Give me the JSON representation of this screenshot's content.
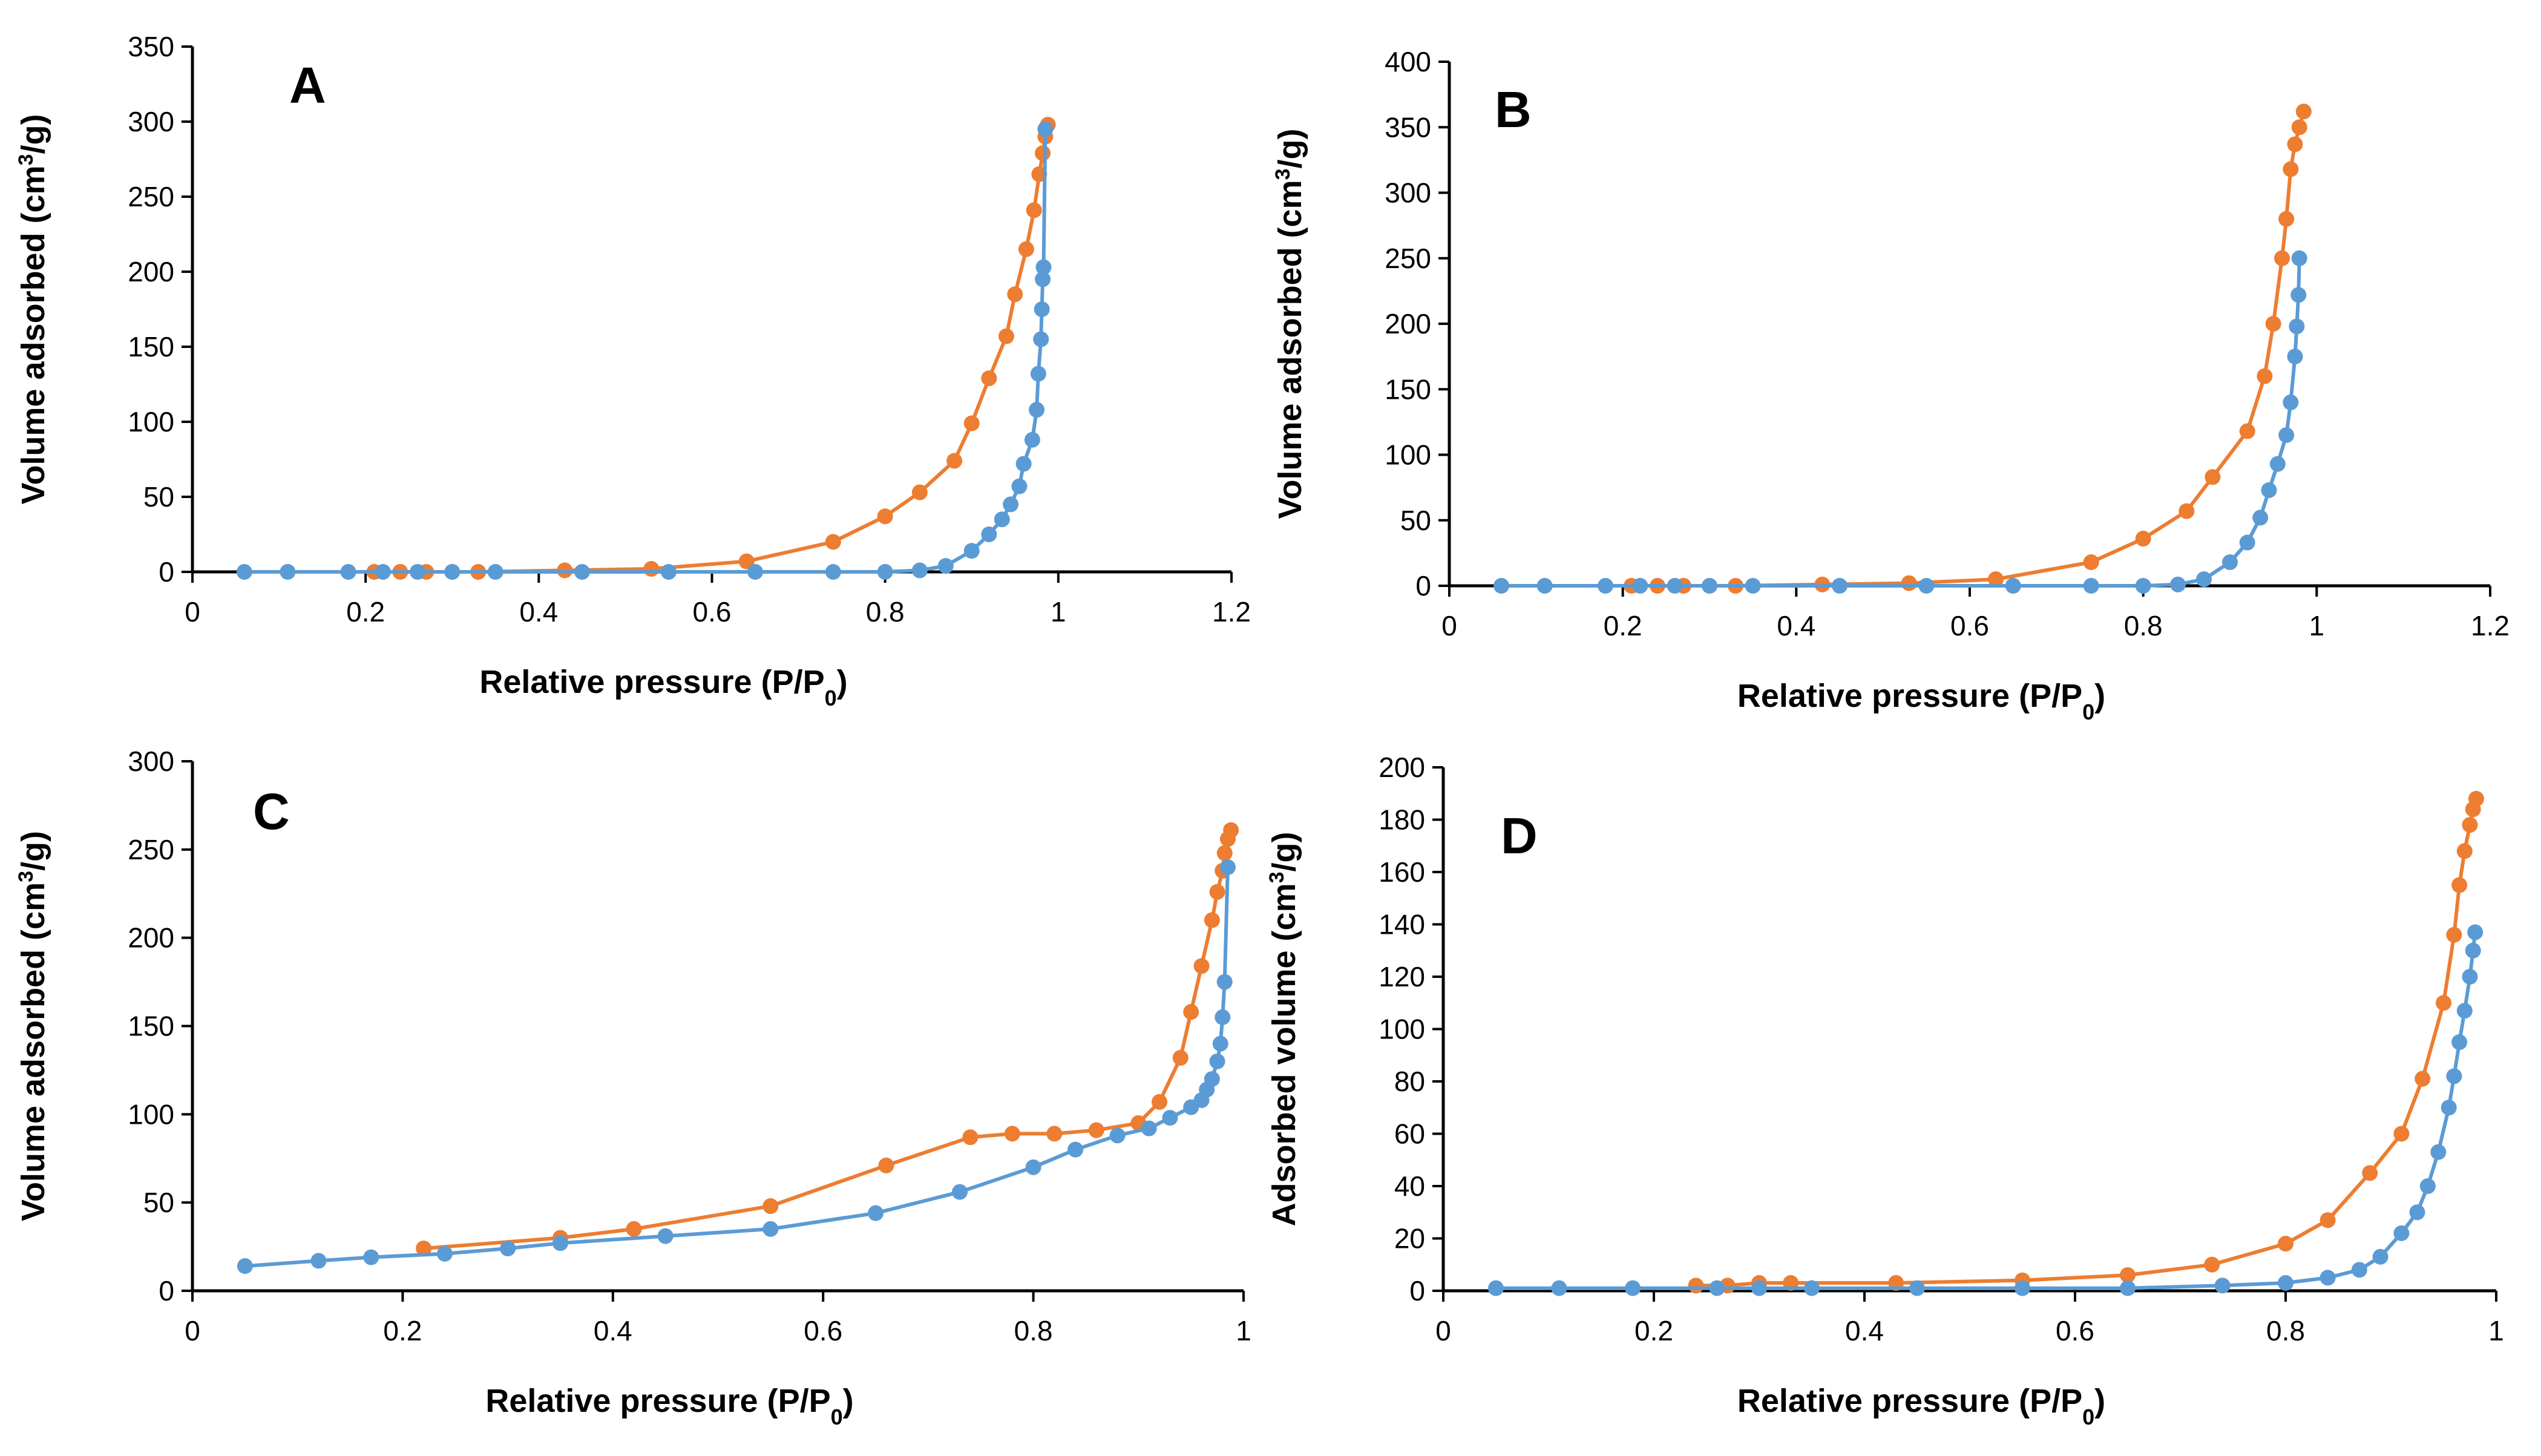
{
  "colors": {
    "desorption": "#ED7D31",
    "adsorption": "#5B9BD5",
    "axis": "#000000"
  },
  "chart_data": [
    {
      "panel": "A",
      "type": "line",
      "xlabel": "Relative pressure (P/P0)",
      "ylabel": "Volume adsorbed (cm3/g)",
      "xlim": [
        0,
        1.2
      ],
      "ylim": [
        0,
        350
      ],
      "xticks": [
        0,
        0.2,
        0.4,
        0.6,
        0.8,
        1,
        1.2
      ],
      "xtick_labels": [
        "0",
        "0.2",
        "0.4",
        "0.6",
        "0.8",
        "1",
        "1.2"
      ],
      "yticks": [
        0,
        50,
        100,
        150,
        200,
        250,
        300,
        350
      ],
      "ytick_labels": [
        "0",
        "50",
        "100",
        "150",
        "200",
        "250",
        "300",
        "350"
      ],
      "series": [
        {
          "color": "#ED7D31",
          "points": [
            [
              0.21,
              0
            ],
            [
              0.24,
              0
            ],
            [
              0.27,
              0
            ],
            [
              0.3,
              0
            ],
            [
              0.33,
              0
            ],
            [
              0.43,
              1
            ],
            [
              0.53,
              2
            ],
            [
              0.64,
              7
            ],
            [
              0.74,
              20
            ],
            [
              0.8,
              37
            ],
            [
              0.84,
              53
            ],
            [
              0.88,
              74
            ],
            [
              0.9,
              99
            ],
            [
              0.92,
              129
            ],
            [
              0.94,
              157
            ],
            [
              0.95,
              185
            ],
            [
              0.963,
              215
            ],
            [
              0.972,
              241
            ],
            [
              0.978,
              265
            ],
            [
              0.982,
              279
            ],
            [
              0.985,
              290
            ],
            [
              0.988,
              298
            ]
          ]
        },
        {
          "color": "#5B9BD5",
          "points": [
            [
              0.06,
              0
            ],
            [
              0.11,
              0
            ],
            [
              0.18,
              0
            ],
            [
              0.22,
              0
            ],
            [
              0.26,
              0
            ],
            [
              0.3,
              0
            ],
            [
              0.35,
              0
            ],
            [
              0.45,
              0
            ],
            [
              0.55,
              0
            ],
            [
              0.65,
              0
            ],
            [
              0.74,
              0
            ],
            [
              0.8,
              0
            ],
            [
              0.84,
              1
            ],
            [
              0.87,
              4
            ],
            [
              0.9,
              14
            ],
            [
              0.92,
              25
            ],
            [
              0.935,
              35
            ],
            [
              0.945,
              45
            ],
            [
              0.955,
              57
            ],
            [
              0.96,
              72
            ],
            [
              0.97,
              88
            ],
            [
              0.975,
              108
            ],
            [
              0.977,
              132
            ],
            [
              0.98,
              155
            ],
            [
              0.981,
              175
            ],
            [
              0.982,
              195
            ],
            [
              0.983,
              203
            ],
            [
              0.985,
              295
            ]
          ]
        }
      ]
    },
    {
      "panel": "B",
      "type": "line",
      "xlabel": "Relative pressure (P/P0)",
      "ylabel": "Volume adsorbed (cm3/g)",
      "xlim": [
        0,
        1.2
      ],
      "ylim": [
        0,
        400
      ],
      "xticks": [
        0,
        0.2,
        0.4,
        0.6,
        0.8,
        1,
        1.2
      ],
      "xtick_labels": [
        "0",
        "0.2",
        "0.4",
        "0.6",
        "0.8",
        "1",
        "1.2"
      ],
      "yticks": [
        0,
        50,
        100,
        150,
        200,
        250,
        300,
        350,
        400
      ],
      "ytick_labels": [
        "0",
        "50",
        "100",
        "150",
        "200",
        "250",
        "300",
        "350",
        "400"
      ],
      "series": [
        {
          "color": "#ED7D31",
          "points": [
            [
              0.21,
              0
            ],
            [
              0.24,
              0
            ],
            [
              0.27,
              0
            ],
            [
              0.3,
              0
            ],
            [
              0.33,
              0
            ],
            [
              0.43,
              1
            ],
            [
              0.53,
              2
            ],
            [
              0.63,
              5
            ],
            [
              0.74,
              18
            ],
            [
              0.8,
              36
            ],
            [
              0.85,
              57
            ],
            [
              0.88,
              83
            ],
            [
              0.92,
              118
            ],
            [
              0.94,
              160
            ],
            [
              0.95,
              200
            ],
            [
              0.96,
              250
            ],
            [
              0.965,
              280
            ],
            [
              0.97,
              318
            ],
            [
              0.975,
              337
            ],
            [
              0.98,
              350
            ],
            [
              0.985,
              362
            ]
          ]
        },
        {
          "color": "#5B9BD5",
          "points": [
            [
              0.06,
              0
            ],
            [
              0.11,
              0
            ],
            [
              0.18,
              0
            ],
            [
              0.22,
              0
            ],
            [
              0.26,
              0
            ],
            [
              0.3,
              0
            ],
            [
              0.35,
              0
            ],
            [
              0.45,
              0
            ],
            [
              0.55,
              0
            ],
            [
              0.65,
              0
            ],
            [
              0.74,
              0
            ],
            [
              0.8,
              0
            ],
            [
              0.84,
              1
            ],
            [
              0.87,
              5
            ],
            [
              0.9,
              18
            ],
            [
              0.92,
              33
            ],
            [
              0.935,
              52
            ],
            [
              0.945,
              73
            ],
            [
              0.955,
              93
            ],
            [
              0.965,
              115
            ],
            [
              0.97,
              140
            ],
            [
              0.975,
              175
            ],
            [
              0.977,
              198
            ],
            [
              0.979,
              222
            ],
            [
              0.98,
              250
            ]
          ]
        }
      ]
    },
    {
      "panel": "C",
      "type": "line",
      "xlabel": "Relative pressure (P/P0)",
      "ylabel": "Volume adsorbed (cm3/g)",
      "xlim": [
        0,
        1
      ],
      "ylim": [
        0,
        300
      ],
      "xticks": [
        0,
        0.2,
        0.4,
        0.6,
        0.8,
        1
      ],
      "xtick_labels": [
        "0",
        "0.2",
        "0.4",
        "0.6",
        "0.8",
        "1"
      ],
      "yticks": [
        0,
        50,
        100,
        150,
        200,
        250,
        300
      ],
      "ytick_labels": [
        "0",
        "50",
        "100",
        "150",
        "200",
        "250",
        "300"
      ],
      "series": [
        {
          "color": "#ED7D31",
          "points": [
            [
              0.22,
              24
            ],
            [
              0.35,
              30
            ],
            [
              0.42,
              35
            ],
            [
              0.55,
              48
            ],
            [
              0.66,
              71
            ],
            [
              0.74,
              87
            ],
            [
              0.78,
              89
            ],
            [
              0.82,
              89
            ],
            [
              0.86,
              91
            ],
            [
              0.9,
              95
            ],
            [
              0.92,
              107
            ],
            [
              0.94,
              132
            ],
            [
              0.95,
              158
            ],
            [
              0.96,
              184
            ],
            [
              0.97,
              210
            ],
            [
              0.975,
              226
            ],
            [
              0.98,
              238
            ],
            [
              0.982,
              248
            ],
            [
              0.985,
              256
            ],
            [
              0.988,
              261
            ]
          ]
        },
        {
          "color": "#5B9BD5",
          "points": [
            [
              0.05,
              14
            ],
            [
              0.12,
              17
            ],
            [
              0.17,
              19
            ],
            [
              0.24,
              21
            ],
            [
              0.3,
              24
            ],
            [
              0.35,
              27
            ],
            [
              0.45,
              31
            ],
            [
              0.55,
              35
            ],
            [
              0.65,
              44
            ],
            [
              0.73,
              56
            ],
            [
              0.8,
              70
            ],
            [
              0.84,
              80
            ],
            [
              0.88,
              88
            ],
            [
              0.91,
              92
            ],
            [
              0.93,
              98
            ],
            [
              0.95,
              104
            ],
            [
              0.96,
              108
            ],
            [
              0.965,
              114
            ],
            [
              0.97,
              120
            ],
            [
              0.975,
              130
            ],
            [
              0.978,
              140
            ],
            [
              0.98,
              155
            ],
            [
              0.982,
              175
            ],
            [
              0.985,
              240
            ]
          ]
        }
      ]
    },
    {
      "panel": "D",
      "type": "line",
      "xlabel": "Relative pressure (P/P0)",
      "ylabel": "Adsorbed volume (cm3/g)",
      "xlim": [
        0,
        1
      ],
      "ylim": [
        0,
        200
      ],
      "xticks": [
        0,
        0.2,
        0.4,
        0.6,
        0.8,
        1
      ],
      "xtick_labels": [
        "0",
        "0.2",
        "0.4",
        "0.6",
        "0.8",
        "1"
      ],
      "yticks": [
        0,
        20,
        40,
        60,
        80,
        100,
        120,
        140,
        160,
        180,
        200
      ],
      "ytick_labels": [
        "0",
        "20",
        "40",
        "60",
        "80",
        "100",
        "120",
        "140",
        "160",
        "180",
        "200"
      ],
      "series": [
        {
          "color": "#ED7D31",
          "points": [
            [
              0.24,
              2
            ],
            [
              0.27,
              2
            ],
            [
              0.3,
              3
            ],
            [
              0.33,
              3
            ],
            [
              0.43,
              3
            ],
            [
              0.55,
              4
            ],
            [
              0.65,
              6
            ],
            [
              0.73,
              10
            ],
            [
              0.8,
              18
            ],
            [
              0.84,
              27
            ],
            [
              0.88,
              45
            ],
            [
              0.91,
              60
            ],
            [
              0.93,
              81
            ],
            [
              0.95,
              110
            ],
            [
              0.96,
              136
            ],
            [
              0.965,
              155
            ],
            [
              0.97,
              168
            ],
            [
              0.975,
              178
            ],
            [
              0.978,
              184
            ],
            [
              0.981,
              188
            ]
          ]
        },
        {
          "color": "#5B9BD5",
          "points": [
            [
              0.05,
              1
            ],
            [
              0.11,
              1
            ],
            [
              0.18,
              1
            ],
            [
              0.26,
              1
            ],
            [
              0.3,
              1
            ],
            [
              0.35,
              1
            ],
            [
              0.45,
              1
            ],
            [
              0.55,
              1
            ],
            [
              0.65,
              1
            ],
            [
              0.74,
              2
            ],
            [
              0.8,
              3
            ],
            [
              0.84,
              5
            ],
            [
              0.87,
              8
            ],
            [
              0.89,
              13
            ],
            [
              0.91,
              22
            ],
            [
              0.925,
              30
            ],
            [
              0.935,
              40
            ],
            [
              0.945,
              53
            ],
            [
              0.955,
              70
            ],
            [
              0.96,
              82
            ],
            [
              0.965,
              95
            ],
            [
              0.97,
              107
            ],
            [
              0.975,
              120
            ],
            [
              0.978,
              130
            ],
            [
              0.98,
              137
            ]
          ]
        }
      ]
    }
  ]
}
